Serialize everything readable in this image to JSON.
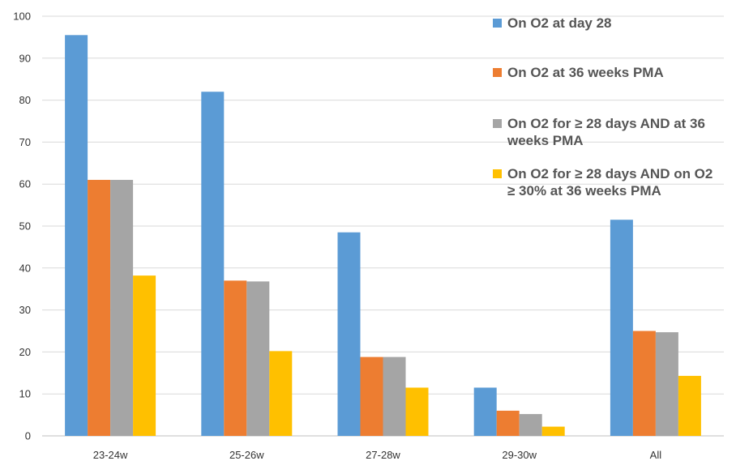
{
  "chart_data": {
    "type": "bar",
    "title": "",
    "xlabel": "",
    "ylabel": "",
    "ylim": [
      0,
      100
    ],
    "yticks": [
      0,
      10,
      20,
      30,
      40,
      50,
      60,
      70,
      80,
      90,
      100
    ],
    "grid": true,
    "legend_position": "top-right",
    "categories": [
      "23-24w",
      "25-26w",
      "27-28w",
      "29-30w",
      "All"
    ],
    "series": [
      {
        "name": "On O2 at day 28",
        "color": "#5b9bd5",
        "values": [
          95.5,
          82,
          48.5,
          11.5,
          51.5
        ]
      },
      {
        "name": "On O2 at 36 weeks PMA",
        "color": "#ed7d31",
        "values": [
          61,
          37,
          18.8,
          6,
          25
        ]
      },
      {
        "name": "On O2 for ≥ 28 days AND at 36 weeks PMA",
        "legend_lines": [
          "On O2 for ≥ 28 days AND at 36",
          "weeks PMA"
        ],
        "color": "#a5a5a5",
        "values": [
          61,
          36.8,
          18.8,
          5.2,
          24.7
        ]
      },
      {
        "name": "On O2 for ≥ 28 days AND on O2 ≥ 30% at 36 weeks PMA",
        "legend_lines": [
          "On O2 for ≥ 28 days AND on O2",
          "≥ 30% at 36 weeks PMA"
        ],
        "color": "#ffc000",
        "values": [
          38.2,
          20.2,
          11.5,
          2.2,
          14.3
        ]
      }
    ]
  }
}
